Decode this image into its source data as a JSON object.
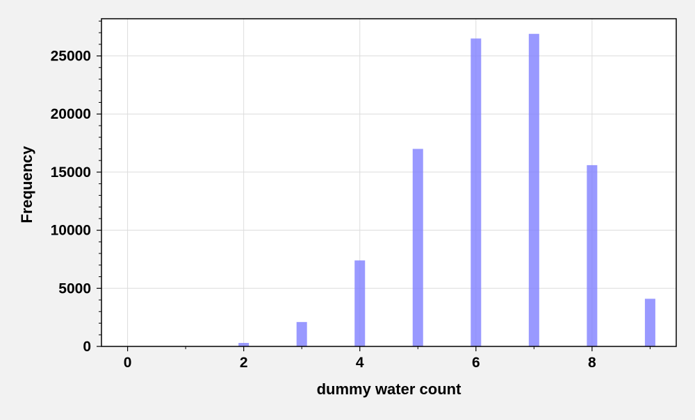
{
  "chart_data": {
    "type": "bar",
    "title": "",
    "xlabel": "dummy water count",
    "ylabel": "Frequency",
    "x": [
      0,
      1,
      2,
      3,
      4,
      5,
      6,
      7,
      8,
      9
    ],
    "values": [
      0,
      0,
      300,
      2100,
      7400,
      17000,
      26500,
      26900,
      15600,
      4100
    ],
    "xlim": [
      -0.45,
      9.45
    ],
    "ylim": [
      0,
      28200
    ],
    "xticks": [
      0,
      2,
      4,
      6,
      8
    ],
    "xtick_labels": [
      "0",
      "2",
      "4",
      "6",
      "8"
    ],
    "yticks": [
      0,
      5000,
      10000,
      15000,
      20000,
      25000
    ],
    "ytick_labels": [
      "0",
      "5000",
      "10000",
      "15000",
      "20000",
      "25000"
    ],
    "grid": true,
    "legend": "none",
    "bar_color": "#8080ff",
    "background": "#ffffff",
    "figure_background": "#f2f2f2"
  }
}
